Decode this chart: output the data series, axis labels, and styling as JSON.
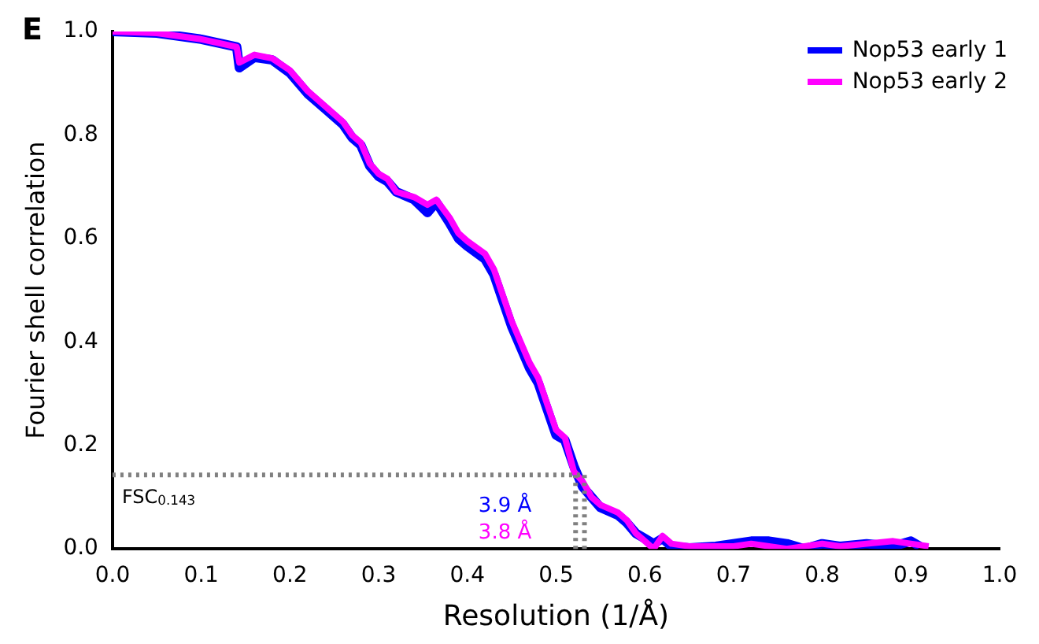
{
  "chart_data": {
    "type": "line",
    "title": "E",
    "xlabel": "Resolution (1/Å)",
    "ylabel": "Fourier shell correlation",
    "xlim": [
      0,
      1
    ],
    "ylim": [
      0,
      1
    ],
    "xticks": [
      {
        "value": 0,
        "label": "0.0"
      },
      0.1,
      0.2,
      0.3,
      0.4,
      0.5,
      0.6,
      0.7,
      0.8,
      0.9,
      {
        "value": 1,
        "label": "1.0"
      }
    ],
    "yticks": [
      {
        "value": 0,
        "label": "0.0"
      },
      0.2,
      0.4,
      0.6,
      0.8,
      {
        "value": 1,
        "label": "1.0"
      }
    ],
    "grid": false,
    "legend": "top right",
    "marker": "none",
    "line_style": "solid",
    "series": [
      {
        "name": "Nop53 early 1",
        "color": "#0000ff",
        "x": [
          0,
          0.05,
          0.1,
          0.14,
          0.143,
          0.16,
          0.18,
          0.2,
          0.22,
          0.24,
          0.26,
          0.27,
          0.28,
          0.29,
          0.3,
          0.31,
          0.32,
          0.34,
          0.355,
          0.365,
          0.38,
          0.39,
          0.4,
          0.42,
          0.43,
          0.44,
          0.45,
          0.46,
          0.47,
          0.48,
          0.49,
          0.5,
          0.51,
          0.52,
          0.53,
          0.54,
          0.55,
          0.57,
          0.58,
          0.59,
          0.6,
          0.61,
          0.62,
          0.63,
          0.65,
          0.68,
          0.7,
          0.72,
          0.74,
          0.76,
          0.78,
          0.8,
          0.82,
          0.85,
          0.88,
          0.9,
          0.91
        ],
        "values": [
          1,
          0.997,
          0.985,
          0.97,
          0.93,
          0.95,
          0.945,
          0.92,
          0.88,
          0.85,
          0.82,
          0.795,
          0.78,
          0.74,
          0.72,
          0.71,
          0.69,
          0.675,
          0.65,
          0.67,
          0.63,
          0.6,
          0.585,
          0.56,
          0.53,
          0.48,
          0.43,
          0.39,
          0.35,
          0.32,
          0.27,
          0.22,
          0.21,
          0.16,
          0.12,
          0.1,
          0.08,
          0.065,
          0.05,
          0.03,
          0.02,
          0.01,
          0.02,
          0.005,
          0.002,
          0.005,
          0.01,
          0.015,
          0.015,
          0.01,
          0,
          0.01,
          0.005,
          0.01,
          0.005,
          0.015,
          0.005
        ]
      },
      {
        "name": "Nop53 early 2",
        "color": "#ff00ff",
        "x": [
          0,
          0.05,
          0.1,
          0.14,
          0.143,
          0.16,
          0.18,
          0.2,
          0.22,
          0.24,
          0.26,
          0.27,
          0.28,
          0.29,
          0.3,
          0.31,
          0.32,
          0.34,
          0.355,
          0.365,
          0.38,
          0.39,
          0.4,
          0.42,
          0.43,
          0.44,
          0.45,
          0.46,
          0.47,
          0.48,
          0.49,
          0.5,
          0.51,
          0.52,
          0.53,
          0.54,
          0.55,
          0.57,
          0.58,
          0.59,
          0.6,
          0.61,
          0.62,
          0.63,
          0.65,
          0.68,
          0.7,
          0.72,
          0.74,
          0.76,
          0.78,
          0.8,
          0.82,
          0.85,
          0.88,
          0.9,
          0.92
        ],
        "values": [
          1,
          0.997,
          0.985,
          0.97,
          0.94,
          0.955,
          0.948,
          0.925,
          0.885,
          0.855,
          0.825,
          0.8,
          0.785,
          0.745,
          0.725,
          0.715,
          0.69,
          0.68,
          0.665,
          0.675,
          0.64,
          0.61,
          0.595,
          0.57,
          0.54,
          0.49,
          0.44,
          0.4,
          0.36,
          0.33,
          0.28,
          0.23,
          0.215,
          0.15,
          0.13,
          0.1,
          0.085,
          0.07,
          0.055,
          0.03,
          0.015,
          0,
          0.025,
          0.01,
          0.005,
          0.005,
          0.005,
          0.01,
          0.005,
          0,
          0.005,
          0.01,
          0.005,
          0.01,
          0.015,
          0.01,
          0.005
        ]
      }
    ],
    "ref_lines": [
      {
        "axis": "y",
        "value": 0.143,
        "label": "FSC$_{0.143}$",
        "color": "#808080",
        "line_style": "dotted"
      },
      {
        "axis": "x",
        "value": 0.522,
        "color": "#808080",
        "line_style": "dotted"
      },
      {
        "axis": "x",
        "value": 0.532,
        "color": "#808080",
        "line_style": "dotted"
      }
    ],
    "annotations": [
      "3.9 Å",
      "3.8 Å"
    ]
  }
}
